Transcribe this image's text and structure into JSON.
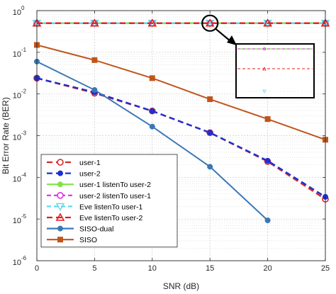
{
  "chart_data": {
    "type": "line",
    "xlabel": "SNR (dB)",
    "ylabel": "Bit Error Rate (BER)",
    "x": [
      0,
      5,
      10,
      15,
      20,
      25
    ],
    "xlim": [
      0,
      25
    ],
    "ylim": [
      1e-06,
      1
    ],
    "yscale": "log",
    "x_tick_labels": [
      "0",
      "5",
      "10",
      "15",
      "20",
      "25"
    ],
    "y_tick_labels": [
      {
        "base": "10",
        "exp": "-6"
      },
      {
        "base": "10",
        "exp": "-5"
      },
      {
        "base": "10",
        "exp": "-4"
      },
      {
        "base": "10",
        "exp": "-3"
      },
      {
        "base": "10",
        "exp": "-2"
      },
      {
        "base": "10",
        "exp": "-1"
      },
      {
        "base": "10",
        "exp": "0"
      }
    ],
    "grid": true,
    "legend_position": "bottom-left",
    "series": [
      {
        "name": "user-1",
        "color": "#d62728",
        "dash": "8,5",
        "marker": "circle-open",
        "values": [
          0.024,
          0.0105,
          0.0039,
          0.00118,
          0.00024,
          3e-05
        ]
      },
      {
        "name": "user-2",
        "color": "#1f2fd1",
        "dash": "8,5",
        "marker": "circle-filled",
        "values": [
          0.024,
          0.011,
          0.0039,
          0.00118,
          0.00025,
          3.4e-05
        ]
      },
      {
        "name": "user-1 listenTo user-2",
        "color": "#7fe34a",
        "dash": "",
        "marker": "circle-filled",
        "values": [
          0.5,
          0.5,
          0.5,
          0.5,
          0.5,
          0.5
        ]
      },
      {
        "name": "user-2 listenTo user-1",
        "color": "#e030e0",
        "dash": "6,4",
        "marker": "circle-open",
        "values": [
          0.5,
          0.5,
          0.5,
          0.5,
          0.5,
          0.5
        ]
      },
      {
        "name": "Eve listenTo user-1",
        "color": "#5fd8f0",
        "dash": "6,4",
        "marker": "triangle-down-open",
        "values": [
          0.5,
          0.5,
          0.5,
          0.5,
          0.5,
          0.5
        ]
      },
      {
        "name": "Eve listenTo user-2",
        "color": "#e02020",
        "dash": "8,5",
        "marker": "triangle-up-open",
        "values": [
          0.5,
          0.5,
          0.5,
          0.5,
          0.5,
          0.5
        ]
      },
      {
        "name": "SISO-dual",
        "color": "#3a78b5",
        "dash": "",
        "marker": "circle-filled",
        "values": [
          0.06,
          0.0125,
          0.00165,
          0.00018,
          9.3e-06,
          null
        ]
      },
      {
        "name": "SISO",
        "color": "#c0551c",
        "dash": "",
        "marker": "square-filled",
        "values": [
          0.15,
          0.065,
          0.024,
          0.0075,
          0.0025,
          0.0008
        ]
      }
    ],
    "annotations": [
      {
        "type": "zoom-circle",
        "x": 15,
        "y": 0.5
      },
      {
        "type": "zoom-inset",
        "description_lines": 4
      }
    ]
  }
}
